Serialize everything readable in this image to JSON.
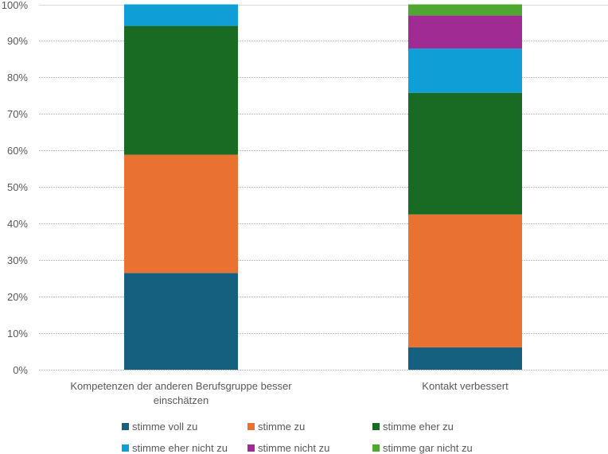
{
  "chart_data": {
    "type": "bar",
    "stacked": true,
    "percent_stacked": true,
    "title": "",
    "xlabel": "",
    "ylabel": "",
    "ylim": [
      0,
      100
    ],
    "y_ticks": [
      "0%",
      "10%",
      "20%",
      "30%",
      "40%",
      "50%",
      "60%",
      "70%",
      "80%",
      "90%",
      "100%"
    ],
    "grid": true,
    "legend_position": "bottom",
    "categories": [
      [
        "Kompetenzen der anderen Berufsgruppe besser",
        "einschätzen"
      ],
      [
        "Kontakt verbessert"
      ]
    ],
    "series": [
      {
        "name": "stimme voll zu",
        "color": "#16607F",
        "values": [
          26.5,
          6.1
        ]
      },
      {
        "name": "stimme zu",
        "color": "#E97132",
        "values": [
          32.4,
          36.4
        ]
      },
      {
        "name": "stimme eher zu",
        "color": "#196B24",
        "values": [
          35.3,
          33.3
        ]
      },
      {
        "name": "stimme eher nicht zu",
        "color": "#0F9ED5",
        "values": [
          5.9,
          12.1
        ]
      },
      {
        "name": "stimme nicht zu",
        "color": "#A02B93",
        "values": [
          0,
          9.1
        ]
      },
      {
        "name": "stimme gar nicht zu",
        "color": "#4EA72E",
        "values": [
          0,
          3.0
        ]
      }
    ]
  }
}
